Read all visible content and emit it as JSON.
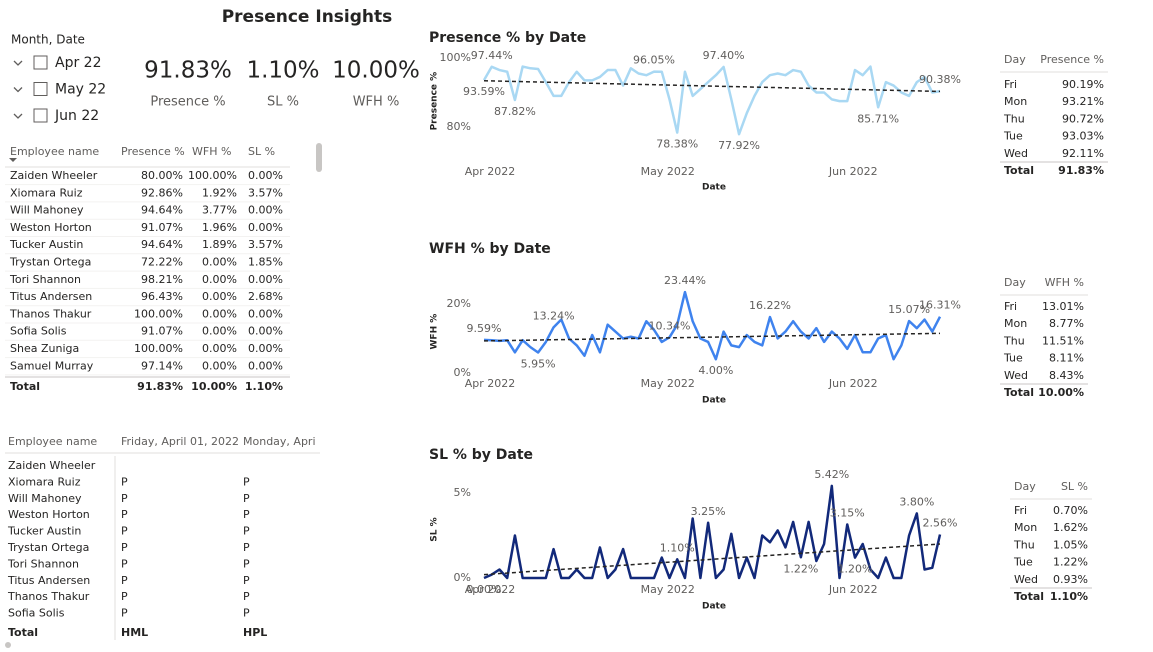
{
  "header": {
    "title": "Presence Insights"
  },
  "slicer": {
    "title": "Month, Date",
    "items": [
      "Apr 22",
      "May 22",
      "Jun 22"
    ]
  },
  "kpis": [
    {
      "value": "91.83%",
      "label": "Presence %"
    },
    {
      "value": "1.10%",
      "label": "SL %"
    },
    {
      "value": "10.00%",
      "label": "WFH %"
    }
  ],
  "employees": {
    "columns": [
      "Employee name",
      "Presence %",
      "WFH %",
      "SL %"
    ],
    "rows": [
      [
        "Zaiden Wheeler",
        "80.00%",
        "100.00%",
        "0.00%"
      ],
      [
        "Xiomara Ruiz",
        "92.86%",
        "1.92%",
        "3.57%"
      ],
      [
        "Will Mahoney",
        "94.64%",
        "3.77%",
        "0.00%"
      ],
      [
        "Weston Horton",
        "91.07%",
        "1.96%",
        "0.00%"
      ],
      [
        "Tucker Austin",
        "94.64%",
        "1.89%",
        "3.57%"
      ],
      [
        "Trystan Ortega",
        "72.22%",
        "0.00%",
        "1.85%"
      ],
      [
        "Tori Shannon",
        "98.21%",
        "0.00%",
        "0.00%"
      ],
      [
        "Titus Andersen",
        "96.43%",
        "0.00%",
        "2.68%"
      ],
      [
        "Thanos Thakur",
        "100.00%",
        "0.00%",
        "0.00%"
      ],
      [
        "Sofia Solis",
        "91.07%",
        "0.00%",
        "0.00%"
      ],
      [
        "Shea Zuniga",
        "100.00%",
        "0.00%",
        "0.00%"
      ],
      [
        "Samuel Murray",
        "97.14%",
        "0.00%",
        "0.00%"
      ]
    ],
    "total": [
      "Total",
      "91.83%",
      "10.00%",
      "1.10%"
    ]
  },
  "attendance": {
    "columns": [
      "Employee name",
      "Friday, April 01, 2022",
      "Monday, Apri"
    ],
    "rows": [
      [
        "Zaiden Wheeler"
      ],
      [
        "Xiomara Ruiz",
        "P",
        "P"
      ],
      [
        "Will Mahoney",
        "P",
        "P"
      ],
      [
        "Weston Horton",
        "P",
        "P"
      ],
      [
        "Tucker Austin",
        "P",
        "P"
      ],
      [
        "Trystan Ortega",
        "P",
        "P"
      ],
      [
        "Tori Shannon",
        "P",
        "P"
      ],
      [
        "Titus Andersen",
        "P",
        "P"
      ],
      [
        "Thanos Thakur",
        "P",
        "P"
      ],
      [
        "Sofia Solis",
        "P",
        "P"
      ]
    ],
    "total": [
      "Total",
      "HML",
      "HPL"
    ]
  },
  "day_tables": [
    {
      "columns": [
        "Day",
        "Presence %"
      ],
      "rows": [
        [
          "Fri",
          "90.19%"
        ],
        [
          "Mon",
          "93.21%"
        ],
        [
          "Thu",
          "90.72%"
        ],
        [
          "Tue",
          "93.03%"
        ],
        [
          "Wed",
          "92.11%"
        ]
      ],
      "total": [
        "Total",
        "91.83%"
      ]
    },
    {
      "columns": [
        "Day",
        "WFH %"
      ],
      "rows": [
        [
          "Fri",
          "13.01%"
        ],
        [
          "Mon",
          "8.77%"
        ],
        [
          "Thu",
          "11.51%"
        ],
        [
          "Tue",
          "8.11%"
        ],
        [
          "Wed",
          "8.43%"
        ]
      ],
      "total": [
        "Total",
        "10.00%"
      ]
    },
    {
      "columns": [
        "Day",
        "SL %"
      ],
      "rows": [
        [
          "Fri",
          "0.70%"
        ],
        [
          "Mon",
          "1.62%"
        ],
        [
          "Thu",
          "1.05%"
        ],
        [
          "Tue",
          "1.22%"
        ],
        [
          "Wed",
          "0.93%"
        ]
      ],
      "total": [
        "Total",
        "1.10%"
      ]
    }
  ],
  "chart_data": [
    {
      "type": "line",
      "title": "Presence % by Date",
      "x_label": "Date",
      "y_label": "Presence %",
      "color": "#a9d8f3",
      "categories": [
        "Apr 2022",
        null,
        null,
        null,
        null,
        null,
        null,
        null,
        null,
        null,
        null,
        null,
        null,
        null,
        null,
        null,
        null,
        null,
        null,
        null,
        null,
        null,
        null,
        "May 2022",
        null,
        null,
        null,
        null,
        null,
        null,
        null,
        null,
        null,
        null,
        null,
        null,
        null,
        null,
        null,
        null,
        null,
        null,
        null,
        null,
        null,
        null,
        null,
        "Jun 2022",
        null,
        null,
        null,
        null,
        null,
        null,
        null,
        null,
        null,
        null,
        null,
        null
      ],
      "values": [
        93.59,
        97.44,
        96.5,
        96,
        87.82,
        97.5,
        97,
        96.8,
        93,
        89,
        89,
        93,
        96,
        93.5,
        93.5,
        94.5,
        96.5,
        96.5,
        92,
        97,
        95.5,
        95,
        96.05,
        96,
        88,
        78.38,
        96,
        89,
        91,
        93,
        95,
        97.4,
        88,
        77.92,
        84,
        89,
        93,
        95,
        95.5,
        95,
        96.5,
        96,
        92,
        90,
        90,
        88,
        87.5,
        87.5,
        96.5,
        95,
        97.5,
        85.71,
        93,
        92,
        90,
        89,
        93,
        94.5,
        90,
        90.38
      ],
      "value_labels": [
        "93.59%",
        "97.44%",
        null,
        null,
        "87.82%",
        null,
        null,
        null,
        null,
        null,
        null,
        null,
        null,
        null,
        null,
        null,
        null,
        null,
        null,
        null,
        null,
        null,
        "96.05%",
        null,
        null,
        "78.38%",
        null,
        null,
        null,
        null,
        null,
        "97.40%",
        null,
        "77.92%",
        null,
        null,
        null,
        null,
        null,
        null,
        null,
        null,
        null,
        null,
        null,
        null,
        null,
        null,
        null,
        null,
        null,
        "85.71%",
        null,
        null,
        null,
        null,
        null,
        null,
        null,
        "90.38%"
      ],
      "trend": [
        93.4,
        90.3
      ],
      "ylim": [
        74,
        101
      ],
      "yticks": [
        {
          "value": 80,
          "label": "80%"
        },
        {
          "value": 100,
          "label": "100%"
        }
      ]
    },
    {
      "type": "line",
      "title": "WFH % by Date",
      "x_label": "Date",
      "y_label": "WFH %",
      "color": "#3f83ee",
      "categories": [
        "Apr 2022",
        null,
        null,
        null,
        null,
        null,
        null,
        null,
        null,
        null,
        null,
        null,
        null,
        null,
        null,
        null,
        null,
        null,
        null,
        null,
        null,
        null,
        null,
        "May 2022",
        null,
        null,
        null,
        null,
        null,
        null,
        null,
        null,
        null,
        null,
        null,
        null,
        null,
        null,
        null,
        null,
        null,
        null,
        null,
        null,
        null,
        null,
        null,
        "Jun 2022",
        null,
        null,
        null,
        null,
        null,
        null,
        null,
        null,
        null,
        null,
        null,
        null
      ],
      "values": [
        9.59,
        9.5,
        9.3,
        9.5,
        6,
        9.5,
        7.5,
        5.95,
        9,
        13.24,
        15.5,
        10,
        8,
        5,
        11,
        6,
        14,
        12,
        10,
        10.5,
        10,
        15,
        12.5,
        9,
        10.34,
        14,
        23.44,
        15,
        10,
        9,
        4,
        12,
        8,
        7.5,
        11,
        9,
        8,
        16.22,
        10,
        12,
        15,
        12,
        10,
        13,
        9,
        12,
        10,
        7,
        11,
        6,
        6,
        10,
        11,
        4,
        8,
        15.07,
        13,
        15.5,
        12,
        16.31
      ],
      "value_labels": [
        "9.59%",
        null,
        null,
        null,
        null,
        null,
        null,
        "5.95%",
        null,
        "13.24%",
        null,
        null,
        null,
        null,
        null,
        null,
        null,
        null,
        null,
        null,
        null,
        null,
        null,
        null,
        "10.34%",
        null,
        "23.44%",
        null,
        null,
        null,
        "4.00%",
        null,
        null,
        null,
        null,
        null,
        null,
        "16.22%",
        null,
        null,
        null,
        null,
        null,
        null,
        null,
        null,
        null,
        null,
        null,
        null,
        null,
        null,
        null,
        null,
        null,
        "15.07%",
        null,
        null,
        null,
        "16.31%"
      ],
      "trend": [
        9.3,
        11.5
      ],
      "ylim": [
        -2,
        26
      ],
      "yticks": [
        {
          "value": 0,
          "label": "0%"
        },
        {
          "value": 20,
          "label": "20%"
        }
      ]
    },
    {
      "type": "line",
      "title": "SL % by Date",
      "x_label": "Date",
      "y_label": "SL %",
      "color": "#12297a",
      "categories": [
        "Apr 2022",
        null,
        null,
        null,
        null,
        null,
        null,
        null,
        null,
        null,
        null,
        null,
        null,
        null,
        null,
        null,
        null,
        null,
        null,
        null,
        null,
        null,
        null,
        "May 2022",
        null,
        null,
        null,
        null,
        null,
        null,
        null,
        null,
        null,
        null,
        null,
        null,
        null,
        null,
        null,
        null,
        null,
        null,
        null,
        null,
        null,
        null,
        null,
        "Jun 2022",
        null,
        null,
        null,
        null,
        null,
        null,
        null,
        null,
        null,
        null,
        null,
        null
      ],
      "values": [
        0,
        0.2,
        0.5,
        0,
        2.5,
        0,
        0,
        0,
        0,
        1.7,
        0,
        0,
        0.5,
        0,
        0,
        1.8,
        0,
        0.5,
        1.7,
        0,
        0,
        0,
        0,
        1.2,
        0,
        1.1,
        0,
        3.5,
        0,
        3.25,
        0,
        0.5,
        2.6,
        0,
        1.2,
        0,
        2.5,
        2.1,
        2.8,
        1.8,
        3.3,
        1.22,
        3.3,
        1,
        2,
        5.42,
        0,
        3.15,
        1.2,
        2,
        0.5,
        0,
        1.2,
        0,
        0,
        2.5,
        3.8,
        0.5,
        0.6,
        2.56
      ],
      "value_labels": [
        "0.00%",
        null,
        null,
        null,
        null,
        null,
        null,
        null,
        null,
        null,
        null,
        null,
        null,
        null,
        null,
        null,
        null,
        null,
        null,
        null,
        null,
        null,
        null,
        null,
        null,
        "1.10%",
        null,
        null,
        null,
        "3.25%",
        null,
        null,
        null,
        null,
        null,
        null,
        null,
        null,
        null,
        null,
        null,
        "1.22%",
        null,
        null,
        null,
        "5.42%",
        null,
        "3.15%",
        "1.20%",
        null,
        null,
        null,
        null,
        null,
        null,
        null,
        "3.80%",
        null,
        null,
        "2.56%"
      ],
      "trend": [
        0.2,
        2.0
      ],
      "ylim": [
        -0.4,
        6.1
      ],
      "yticks": [
        {
          "value": 0,
          "label": "0%"
        },
        {
          "value": 5,
          "label": "5%"
        }
      ]
    }
  ]
}
